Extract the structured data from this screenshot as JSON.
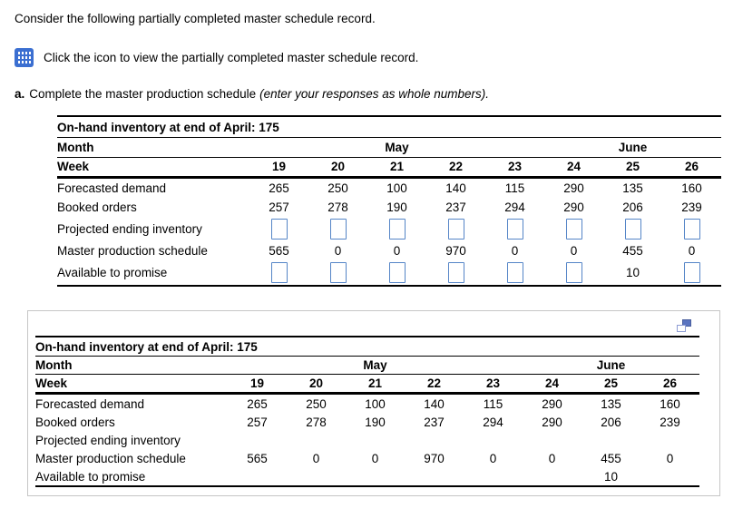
{
  "page": {
    "intro_text": "Consider the following partially completed master schedule record.",
    "icon_line_text": "Click the icon to view the partially completed master schedule record.",
    "part_a_label": "a.",
    "part_a_text": "Complete the master production schedule",
    "part_a_italic": "(enter your responses as whole numbers).",
    "colors": {
      "input_border_blue": "#5585c7",
      "grid_icon_blue": "#3b6fd1",
      "popup_border_gray": "#c6c6c6",
      "popup_icon_blue": "#5a74c0"
    },
    "icons": {
      "view_record_icon": "table-grid-icon",
      "popup_window_icon": "restore-window-icon"
    }
  },
  "schedule": {
    "onhand_label": "On-hand inventory at end of April: 175",
    "month_label": "Month",
    "months": [
      "May",
      "June"
    ],
    "week_label": "Week",
    "weeks": [
      "19",
      "20",
      "21",
      "22",
      "23",
      "24",
      "25",
      "26"
    ],
    "row_labels": {
      "forecast": "Forecasted demand",
      "booked": "Booked orders",
      "pei": "Projected ending inventory",
      "mps": "Master production schedule",
      "atp": "Available to promise"
    },
    "forecast": [
      "265",
      "250",
      "100",
      "140",
      "115",
      "290",
      "135",
      "160"
    ],
    "booked": [
      "257",
      "278",
      "190",
      "237",
      "294",
      "290",
      "206",
      "239"
    ],
    "mps": [
      "565",
      "0",
      "0",
      "970",
      "0",
      "0",
      "455",
      "0"
    ],
    "atp_week25": "10"
  }
}
